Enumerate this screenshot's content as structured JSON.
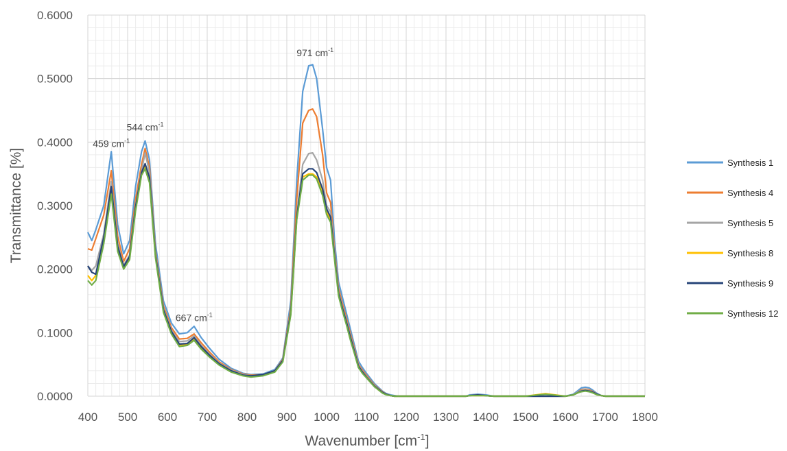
{
  "chart_data": {
    "type": "line",
    "xlabel": "Wavenumber [cm",
    "xlabel_sup": "-1",
    "xlabel_end": "]",
    "ylabel": "Transmittance [%]",
    "xlim": [
      400,
      1800
    ],
    "ylim": [
      0,
      0.6
    ],
    "x_ticks": [
      "400",
      "500",
      "600",
      "700",
      "800",
      "900",
      "1000",
      "1100",
      "1200",
      "1300",
      "1400",
      "1500",
      "1600",
      "1700",
      "1800"
    ],
    "y_ticks": [
      "0.0000",
      "0.1000",
      "0.2000",
      "0.3000",
      "0.4000",
      "0.5000",
      "0.6000"
    ],
    "grid": true,
    "legend_position": "right",
    "annotations": [
      {
        "text": "459 cm",
        "sup": "-1",
        "x": 459,
        "y": 0.392
      },
      {
        "text": "544 cm",
        "sup": "-1",
        "x": 544,
        "y": 0.418
      },
      {
        "text": "667 cm",
        "sup": "-1",
        "x": 667,
        "y": 0.118
      },
      {
        "text": "971 cm",
        "sup": "-1",
        "x": 971,
        "y": 0.535
      }
    ],
    "x": [
      400,
      410,
      420,
      440,
      459,
      475,
      490,
      505,
      520,
      535,
      544,
      555,
      570,
      590,
      610,
      630,
      650,
      667,
      685,
      705,
      730,
      760,
      790,
      810,
      840,
      870,
      890,
      910,
      925,
      940,
      955,
      965,
      975,
      990,
      1000,
      1010,
      1020,
      1030,
      1040,
      1050,
      1060,
      1070,
      1080,
      1090,
      1100,
      1110,
      1120,
      1130,
      1140,
      1150,
      1160,
      1170,
      1180,
      1200,
      1300,
      1350,
      1360,
      1380,
      1400,
      1420,
      1500,
      1550,
      1600,
      1620,
      1630,
      1640,
      1650,
      1660,
      1670,
      1680,
      1690,
      1700,
      1750,
      1800
    ],
    "series": [
      {
        "name": "Synthesis 1",
        "color": "#5B9BD5",
        "values": [
          0.258,
          0.245,
          0.262,
          0.3,
          0.385,
          0.27,
          0.224,
          0.245,
          0.33,
          0.385,
          0.402,
          0.372,
          0.24,
          0.15,
          0.115,
          0.098,
          0.1,
          0.11,
          0.092,
          0.076,
          0.058,
          0.044,
          0.036,
          0.034,
          0.035,
          0.042,
          0.06,
          0.15,
          0.34,
          0.48,
          0.52,
          0.522,
          0.5,
          0.42,
          0.36,
          0.34,
          0.245,
          0.18,
          0.155,
          0.13,
          0.105,
          0.08,
          0.055,
          0.045,
          0.036,
          0.028,
          0.02,
          0.014,
          0.008,
          0.004,
          0.002,
          0.001,
          0.0,
          0.0,
          0.0,
          0.0,
          0.002,
          0.003,
          0.002,
          0.0,
          0.0,
          0.0,
          0.0,
          0.003,
          0.008,
          0.013,
          0.014,
          0.013,
          0.009,
          0.004,
          0.001,
          0.0,
          0.0,
          0.0
        ]
      },
      {
        "name": "Synthesis 4",
        "color": "#ED7D31",
        "values": [
          0.232,
          0.23,
          0.248,
          0.285,
          0.355,
          0.252,
          0.212,
          0.232,
          0.31,
          0.365,
          0.39,
          0.36,
          0.228,
          0.142,
          0.108,
          0.09,
          0.091,
          0.098,
          0.084,
          0.07,
          0.054,
          0.042,
          0.035,
          0.033,
          0.034,
          0.04,
          0.058,
          0.14,
          0.31,
          0.43,
          0.45,
          0.452,
          0.44,
          0.38,
          0.32,
          0.305,
          0.23,
          0.17,
          0.145,
          0.122,
          0.098,
          0.075,
          0.05,
          0.041,
          0.033,
          0.025,
          0.018,
          0.012,
          0.007,
          0.003,
          0.001,
          0.0,
          0.0,
          0.0,
          0.0,
          0.0,
          0.001,
          0.002,
          0.001,
          0.0,
          0.0,
          0.0,
          0.0,
          0.002,
          0.006,
          0.01,
          0.011,
          0.01,
          0.007,
          0.003,
          0.001,
          0.0,
          0.0,
          0.0
        ]
      },
      {
        "name": "Synthesis 5",
        "color": "#A5A5A5",
        "values": [
          0.205,
          0.198,
          0.205,
          0.255,
          0.338,
          0.24,
          0.206,
          0.222,
          0.3,
          0.355,
          0.383,
          0.352,
          0.224,
          0.138,
          0.104,
          0.086,
          0.087,
          0.095,
          0.08,
          0.067,
          0.052,
          0.041,
          0.034,
          0.032,
          0.034,
          0.04,
          0.056,
          0.135,
          0.285,
          0.365,
          0.382,
          0.383,
          0.372,
          0.34,
          0.3,
          0.29,
          0.225,
          0.165,
          0.14,
          0.118,
          0.094,
          0.072,
          0.048,
          0.039,
          0.031,
          0.024,
          0.017,
          0.011,
          0.006,
          0.003,
          0.001,
          0.0,
          0.0,
          0.0,
          0.0,
          0.0,
          0.001,
          0.002,
          0.001,
          0.0,
          0.0,
          0.0,
          0.0,
          0.002,
          0.006,
          0.009,
          0.01,
          0.009,
          0.006,
          0.003,
          0.001,
          0.0,
          0.0,
          0.0
        ]
      },
      {
        "name": "Synthesis 8",
        "color": "#FFC000",
        "values": [
          0.19,
          0.182,
          0.19,
          0.245,
          0.325,
          0.232,
          0.202,
          0.218,
          0.295,
          0.35,
          0.362,
          0.34,
          0.22,
          0.134,
          0.1,
          0.08,
          0.082,
          0.09,
          0.076,
          0.064,
          0.05,
          0.039,
          0.033,
          0.031,
          0.033,
          0.039,
          0.055,
          0.13,
          0.28,
          0.345,
          0.35,
          0.35,
          0.345,
          0.32,
          0.29,
          0.278,
          0.218,
          0.16,
          0.136,
          0.114,
          0.09,
          0.069,
          0.046,
          0.037,
          0.03,
          0.023,
          0.016,
          0.01,
          0.006,
          0.003,
          0.001,
          0.0,
          0.0,
          0.0,
          0.0,
          0.0,
          0.001,
          0.001,
          0.001,
          0.0,
          0.0,
          0.004,
          0.0,
          0.002,
          0.005,
          0.008,
          0.009,
          0.008,
          0.005,
          0.002,
          0.001,
          0.0,
          0.0,
          0.0
        ]
      },
      {
        "name": "Synthesis 9",
        "color": "#264478",
        "values": [
          0.205,
          0.195,
          0.192,
          0.25,
          0.33,
          0.236,
          0.204,
          0.22,
          0.298,
          0.352,
          0.366,
          0.344,
          0.222,
          0.136,
          0.102,
          0.082,
          0.083,
          0.092,
          0.078,
          0.065,
          0.051,
          0.04,
          0.033,
          0.032,
          0.034,
          0.04,
          0.056,
          0.132,
          0.282,
          0.35,
          0.358,
          0.358,
          0.352,
          0.326,
          0.295,
          0.282,
          0.22,
          0.162,
          0.138,
          0.116,
          0.092,
          0.07,
          0.047,
          0.038,
          0.03,
          0.023,
          0.016,
          0.011,
          0.006,
          0.003,
          0.001,
          0.0,
          0.0,
          0.0,
          0.0,
          0.0,
          0.001,
          0.002,
          0.001,
          0.0,
          0.0,
          0.0,
          0.0,
          0.002,
          0.005,
          0.008,
          0.009,
          0.008,
          0.006,
          0.003,
          0.001,
          0.0,
          0.0,
          0.0
        ]
      },
      {
        "name": "Synthesis 12",
        "color": "#70AD47",
        "values": [
          0.182,
          0.175,
          0.182,
          0.24,
          0.318,
          0.228,
          0.2,
          0.215,
          0.292,
          0.348,
          0.358,
          0.336,
          0.218,
          0.132,
          0.098,
          0.078,
          0.08,
          0.088,
          0.074,
          0.062,
          0.049,
          0.038,
          0.032,
          0.03,
          0.032,
          0.038,
          0.054,
          0.128,
          0.278,
          0.34,
          0.348,
          0.348,
          0.342,
          0.316,
          0.286,
          0.274,
          0.215,
          0.158,
          0.134,
          0.112,
          0.088,
          0.067,
          0.045,
          0.036,
          0.029,
          0.022,
          0.015,
          0.01,
          0.005,
          0.002,
          0.001,
          0.0,
          0.0,
          0.0,
          0.0,
          0.0,
          0.001,
          0.001,
          0.001,
          0.0,
          0.0,
          0.003,
          0.0,
          0.002,
          0.005,
          0.007,
          0.008,
          0.007,
          0.005,
          0.002,
          0.001,
          0.0,
          0.0,
          0.0
        ]
      }
    ]
  }
}
